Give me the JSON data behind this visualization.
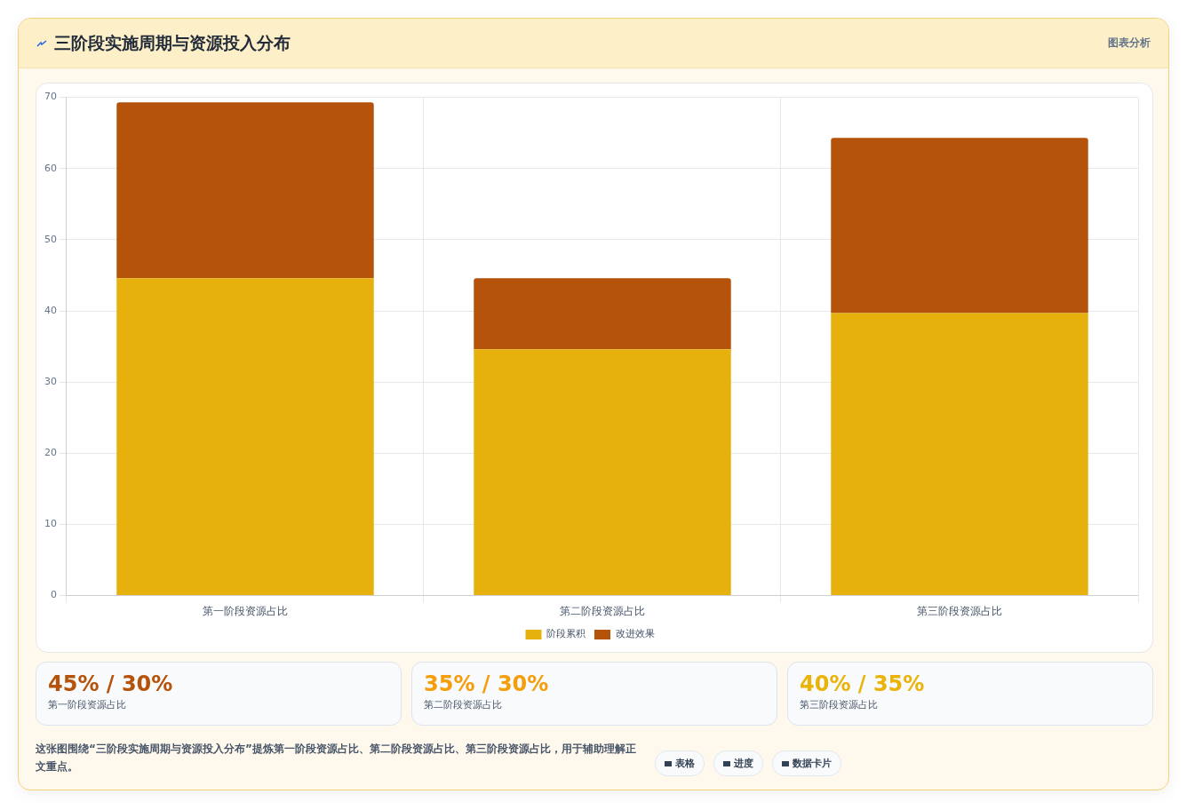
{
  "chart_data": {
    "type": "bar",
    "title": "三阶段实施周期与资源投入分布",
    "categories": [
      "第一阶段资源占比",
      "第二阶段资源占比",
      "第三阶段资源占比"
    ],
    "series": [
      {
        "name": "阶段累积",
        "color": "#e6b10c",
        "values": [
          44.6,
          34.6,
          39.7
        ]
      },
      {
        "name": "改进效果",
        "color": "#b45309",
        "values": [
          24.7,
          10,
          24.6
        ]
      }
    ],
    "stacked": true,
    "ylim": [
      0,
      70
    ],
    "yticks": [
      0,
      10,
      20,
      30,
      40,
      50,
      60,
      70
    ],
    "grid": true,
    "legend": "bottom",
    "annotations": [
      "图表分析",
      "45% / 30%",
      "第一阶段资源占比",
      "35% / 30%",
      "第二阶段资源占比",
      "40% / 35%",
      "第三阶段资源占比",
      "这张图围绕“三阶段实施周期与资源投入分布”提炼第一阶段资源占比、第二阶段资源占比、第三阶段资源占比，用于辅助理解正文重点。",
      "表格",
      "进度",
      "数据卡片"
    ]
  }
}
